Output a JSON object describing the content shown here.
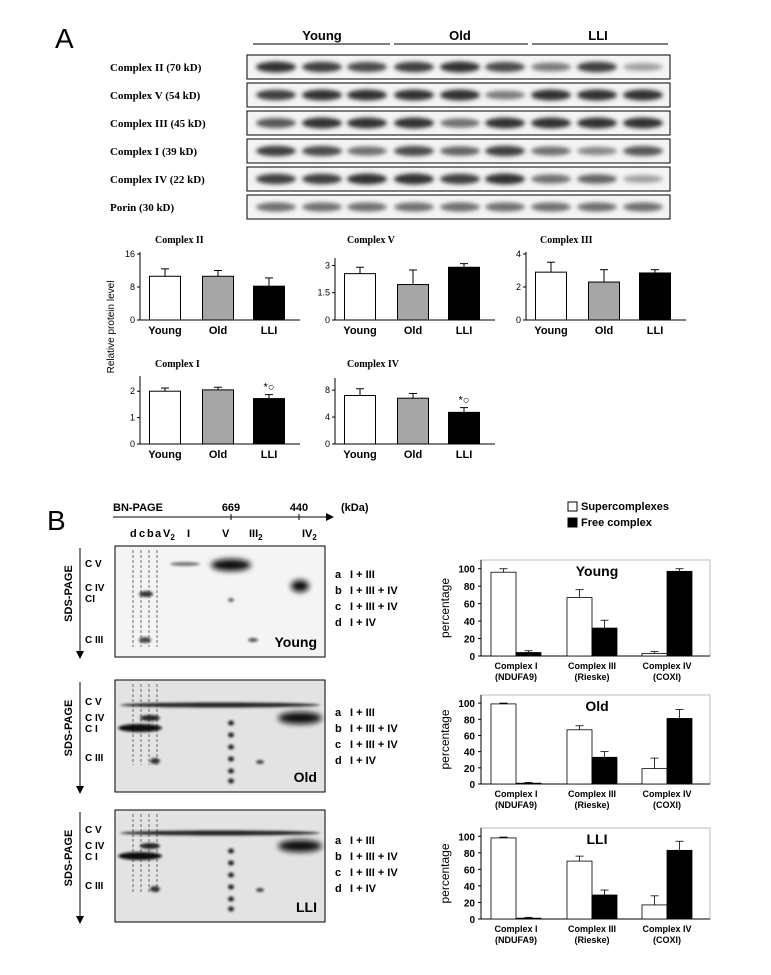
{
  "panel_a": {
    "label": "A",
    "groups": [
      "Young",
      "Old",
      "LLI"
    ],
    "blot_rows": [
      {
        "name": "Complex II (70 kD)",
        "band_intensity": [
          0.85,
          0.8,
          0.75,
          0.8,
          0.85,
          0.75,
          0.55,
          0.8,
          0.4
        ]
      },
      {
        "name": "Complex V (54 kD)",
        "band_intensity": [
          0.8,
          0.85,
          0.85,
          0.85,
          0.85,
          0.55,
          0.85,
          0.85,
          0.85
        ]
      },
      {
        "name": "Complex III (45 kD)",
        "band_intensity": [
          0.7,
          0.85,
          0.85,
          0.85,
          0.6,
          0.85,
          0.85,
          0.85,
          0.85
        ]
      },
      {
        "name": "Complex I (39 kD)",
        "band_intensity": [
          0.8,
          0.75,
          0.6,
          0.75,
          0.65,
          0.8,
          0.6,
          0.5,
          0.7
        ]
      },
      {
        "name": "Complex IV (22 kD)",
        "band_intensity": [
          0.8,
          0.8,
          0.85,
          0.85,
          0.8,
          0.85,
          0.6,
          0.65,
          0.4
        ]
      },
      {
        "name": "Porin (30 kD)",
        "band_intensity": [
          0.6,
          0.6,
          0.6,
          0.6,
          0.6,
          0.6,
          0.6,
          0.6,
          0.6
        ]
      }
    ],
    "y_axis_label": "Relative protein level"
  },
  "panel_b": {
    "label": "B",
    "bn_page_label": "BN-PAGE",
    "bn_marks": [
      "669",
      "440"
    ],
    "bn_unit": "(kDa)",
    "lane_letters": [
      "d",
      "c",
      "b",
      "a",
      "V",
      "I",
      "V",
      "III",
      "IV"
    ],
    "lane_subscript": "2",
    "sds_label": "SDS-PAGE",
    "gel_row_labels": [
      "C V",
      "C IV",
      "CI",
      "C III"
    ],
    "gel_row_labels_alt": [
      "C V",
      "C IV",
      "C I",
      "C III"
    ],
    "complex_legend": [
      {
        "key": "a",
        "text": "I + III"
      },
      {
        "key": "b",
        "text": "I + III + IV"
      },
      {
        "key": "c",
        "text": "I + III + IV"
      },
      {
        "key": "d",
        "text": "I + IV"
      }
    ],
    "gel_titles": [
      "Young",
      "Old",
      "LLI"
    ],
    "legend": {
      "open": "Supercomplexes",
      "filled": "Free complex"
    },
    "y_axis_label": "percentage",
    "x_groups": [
      "Complex I",
      "Complex III",
      "Complex IV"
    ],
    "x_subgroups": [
      "(NDUFA9)",
      "(Rieske)",
      "(COXI)"
    ]
  },
  "chart_data": [
    {
      "type": "bar",
      "title": "Complex II",
      "categories": [
        "Young",
        "Old",
        "LLI"
      ],
      "values": [
        10.6,
        10.6,
        8.2
      ],
      "errors": [
        1.8,
        1.4,
        2.0
      ],
      "yticks": [
        0,
        8,
        16
      ],
      "ylim": [
        0,
        16
      ],
      "colors": [
        "#ffffff",
        "#a6a6a6",
        "#000000"
      ]
    },
    {
      "type": "bar",
      "title": "Complex V",
      "categories": [
        "Young",
        "Old",
        "LLI"
      ],
      "values": [
        2.55,
        1.95,
        2.9
      ],
      "errors": [
        0.35,
        0.8,
        0.2
      ],
      "yticks": [
        0,
        1.5,
        3
      ],
      "ylim": [
        0,
        3.3
      ],
      "colors": [
        "#ffffff",
        "#a6a6a6",
        "#000000"
      ]
    },
    {
      "type": "bar",
      "title": "Complex III",
      "categories": [
        "Young",
        "Old",
        "LLI"
      ],
      "values": [
        2.9,
        2.3,
        2.85
      ],
      "errors": [
        0.6,
        0.75,
        0.2
      ],
      "yticks": [
        0,
        2,
        4
      ],
      "ylim": [
        0,
        4
      ],
      "colors": [
        "#ffffff",
        "#a6a6a6",
        "#000000"
      ]
    },
    {
      "type": "bar",
      "title": "Complex I",
      "categories": [
        "Young",
        "Old",
        "LLI"
      ],
      "values": [
        2.0,
        2.05,
        1.72
      ],
      "errors": [
        0.12,
        0.1,
        0.15
      ],
      "yticks": [
        0,
        1,
        2
      ],
      "ylim": [
        0,
        2.5
      ],
      "colors": [
        "#ffffff",
        "#a6a6a6",
        "#000000"
      ],
      "annotations": [
        "",
        "",
        "*○"
      ]
    },
    {
      "type": "bar",
      "title": "Complex IV",
      "categories": [
        "Young",
        "Old",
        "LLI"
      ],
      "values": [
        7.2,
        6.8,
        4.7
      ],
      "errors": [
        1.0,
        0.7,
        0.7
      ],
      "yticks": [
        0,
        4,
        8
      ],
      "ylim": [
        0,
        9.5
      ],
      "colors": [
        "#ffffff",
        "#a6a6a6",
        "#000000"
      ],
      "annotations": [
        "",
        "",
        "*○"
      ]
    },
    {
      "type": "bar",
      "title": "Young",
      "categories": [
        "Complex I",
        "Complex III",
        "Complex IV"
      ],
      "series": [
        {
          "name": "Supercomplexes",
          "values": [
            96,
            67,
            3
          ],
          "errors": [
            4,
            9,
            2
          ]
        },
        {
          "name": "Free complex",
          "values": [
            4,
            32,
            97
          ],
          "errors": [
            2,
            9,
            3
          ]
        }
      ],
      "yticks": [
        0,
        20,
        40,
        60,
        80,
        100
      ],
      "ylim": [
        0,
        110
      ]
    },
    {
      "type": "bar",
      "title": "Old",
      "categories": [
        "Complex I",
        "Complex III",
        "Complex IV"
      ],
      "series": [
        {
          "name": "Supercomplexes",
          "values": [
            99,
            67,
            19
          ],
          "errors": [
            1,
            5,
            13
          ]
        },
        {
          "name": "Free complex",
          "values": [
            1,
            33,
            81
          ],
          "errors": [
            1,
            7,
            11
          ]
        }
      ],
      "yticks": [
        0,
        20,
        40,
        60,
        80,
        100
      ],
      "ylim": [
        0,
        110
      ]
    },
    {
      "type": "bar",
      "title": "LLI",
      "categories": [
        "Complex I",
        "Complex III",
        "Complex IV"
      ],
      "series": [
        {
          "name": "Supercomplexes",
          "values": [
            98,
            70,
            17
          ],
          "errors": [
            1,
            6,
            11
          ]
        },
        {
          "name": "Free complex",
          "values": [
            1,
            29,
            83
          ],
          "errors": [
            1,
            6,
            11
          ]
        }
      ],
      "yticks": [
        0,
        20,
        40,
        60,
        80,
        100
      ],
      "ylim": [
        0,
        110
      ]
    }
  ]
}
